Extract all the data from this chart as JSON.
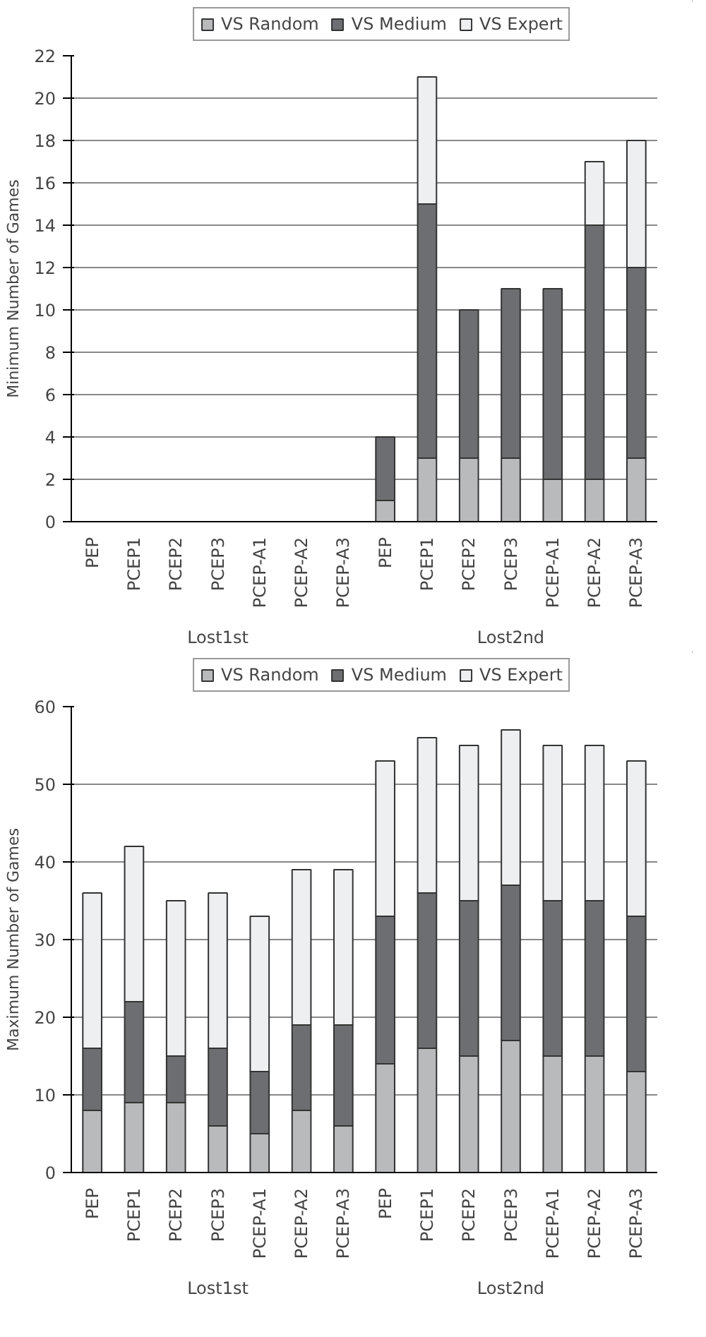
{
  "chart_data": [
    {
      "type": "bar",
      "stacked": true,
      "ylabel": "Minimum Number of Games",
      "categories": [
        "PEP",
        "PCEP1",
        "PCEP2",
        "PCEP3",
        "PCEP-A1",
        "PCEP-A2",
        "PCEP-A3",
        "PEP",
        "PCEP1",
        "PCEP2",
        "PCEP3",
        "PCEP-A1",
        "PCEP-A2",
        "PCEP-A3"
      ],
      "series": [
        {
          "name": "VS Random",
          "color": "#b9babc",
          "values": [
            0,
            0,
            0,
            0,
            0,
            0,
            0,
            1,
            3,
            3,
            3,
            2,
            2,
            3
          ]
        },
        {
          "name": "VS Medium",
          "color": "#6d6e71",
          "values": [
            0,
            0,
            0,
            0,
            0,
            0,
            0,
            3,
            12,
            7,
            8,
            9,
            12,
            9
          ]
        },
        {
          "name": "VS Expert",
          "color": "#eeeff1",
          "values": [
            0,
            0,
            0,
            0,
            0,
            0,
            0,
            0,
            6,
            0,
            0,
            0,
            3,
            6
          ]
        }
      ],
      "ylim": [
        0,
        22
      ],
      "yticks": [
        0,
        2,
        4,
        6,
        8,
        10,
        12,
        14,
        16,
        18,
        20,
        22
      ],
      "grid": "y",
      "legend": "top",
      "annotations": [
        "Lost1st",
        "Lost2nd"
      ]
    },
    {
      "type": "bar",
      "stacked": true,
      "ylabel": "Maximum Number of Games",
      "categories": [
        "PEP",
        "PCEP1",
        "PCEP2",
        "PCEP3",
        "PCEP-A1",
        "PCEP-A2",
        "PCEP-A3",
        "PEP",
        "PCEP1",
        "PCEP2",
        "PCEP3",
        "PCEP-A1",
        "PCEP-A2",
        "PCEP-A3"
      ],
      "series": [
        {
          "name": "VS Random",
          "color": "#b9babc",
          "values": [
            8,
            9,
            9,
            6,
            5,
            8,
            6,
            14,
            16,
            15,
            17,
            15,
            15,
            13
          ]
        },
        {
          "name": "VS Medium",
          "color": "#6d6e71",
          "values": [
            8,
            13,
            6,
            10,
            8,
            11,
            13,
            19,
            20,
            20,
            20,
            20,
            20,
            20
          ]
        },
        {
          "name": "VS Expert",
          "color": "#eeeff1",
          "values": [
            20,
            20,
            20,
            20,
            20,
            20,
            20,
            20,
            20,
            20,
            20,
            20,
            20,
            20
          ]
        }
      ],
      "ylim": [
        0,
        60
      ],
      "yticks": [
        0,
        10,
        20,
        30,
        40,
        50,
        60
      ],
      "grid": "y",
      "legend": "top",
      "annotations": [
        "Lost1st",
        "Lost2nd"
      ]
    }
  ]
}
